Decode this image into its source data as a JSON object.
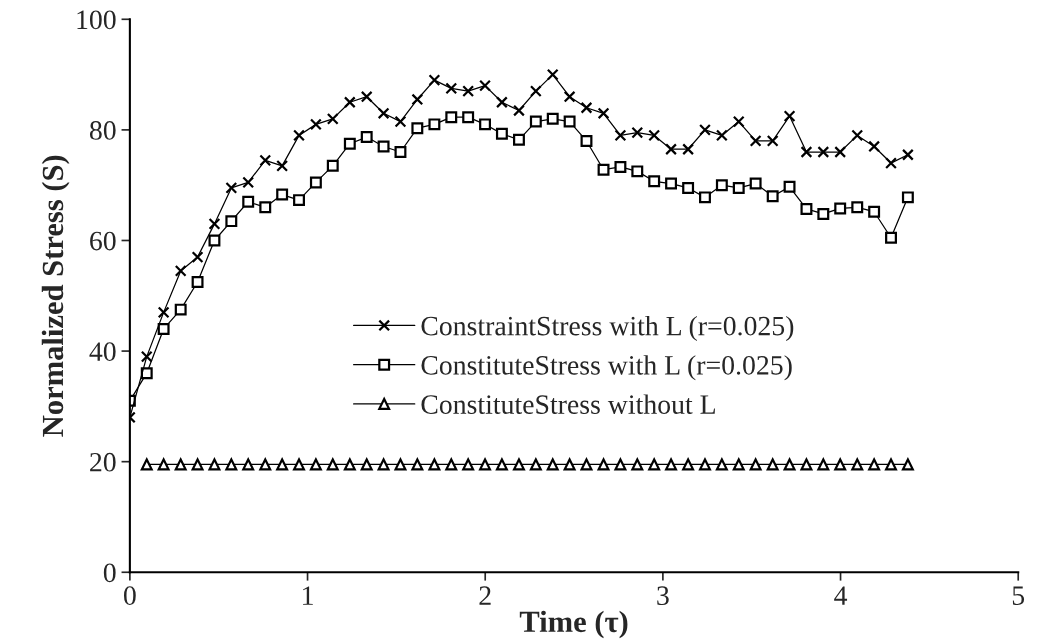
{
  "chart_data": {
    "type": "line",
    "xlabel": "Time (τ)",
    "ylabel": "Normalized Stress (S)",
    "x": [
      0,
      0.095,
      0.19,
      0.286,
      0.381,
      0.476,
      0.571,
      0.666,
      0.762,
      0.857,
      0.952,
      1.047,
      1.142,
      1.238,
      1.333,
      1.428,
      1.523,
      1.618,
      1.714,
      1.809,
      1.904,
      1.999,
      2.094,
      2.19,
      2.285,
      2.38,
      2.475,
      2.57,
      2.666,
      2.761,
      2.856,
      2.951,
      3.046,
      3.142,
      3.237,
      3.332,
      3.427,
      3.522,
      3.618,
      3.713,
      3.808,
      3.903,
      3.998,
      4.094,
      4.189,
      4.284,
      4.379
    ],
    "series": [
      {
        "name": "ConstraintStress with L (r=0.025)",
        "color": "#000000",
        "marker": "cross",
        "values": [
          28,
          39,
          47,
          54.5,
          57,
          63,
          69.5,
          70.5,
          74.5,
          73.5,
          79,
          81,
          82,
          85,
          86,
          83,
          81.5,
          85.5,
          89,
          87.5,
          87,
          88,
          85,
          83.5,
          87,
          90,
          86,
          84,
          83,
          79,
          79.5,
          79,
          76.5,
          76.5,
          80,
          79,
          81.5,
          78,
          78,
          82.5,
          76,
          76,
          76,
          79,
          77,
          74,
          75.5
        ]
      },
      {
        "name": "ConstituteStress with L (r=0.025)",
        "color": "#000000",
        "marker": "square",
        "values": [
          31,
          36,
          44,
          47.5,
          52.5,
          60,
          63.5,
          67,
          66,
          68.3,
          67.3,
          70.5,
          73.5,
          77.5,
          78.7,
          77,
          76,
          80.3,
          81,
          82.3,
          82.3,
          81,
          79.3,
          78.2,
          81.5,
          82,
          81.5,
          78,
          72.8,
          73.3,
          72.5,
          70.7,
          70.3,
          69.5,
          67.8,
          70,
          69.5,
          70.3,
          68,
          69.7,
          65.7,
          64.8,
          65.8,
          66,
          65.2,
          60.5,
          67.8
        ]
      },
      {
        "name": "ConstituteStress without L",
        "color": "#000000",
        "marker": "triangle",
        "values": [
          null,
          19.5,
          19.5,
          19.5,
          19.5,
          19.5,
          19.5,
          19.5,
          19.5,
          19.5,
          19.5,
          19.5,
          19.5,
          19.5,
          19.5,
          19.5,
          19.5,
          19.5,
          19.5,
          19.5,
          19.5,
          19.5,
          19.5,
          19.5,
          19.5,
          19.5,
          19.5,
          19.5,
          19.5,
          19.5,
          19.5,
          19.5,
          19.5,
          19.5,
          19.5,
          19.5,
          19.5,
          19.5,
          19.5,
          19.5,
          19.5,
          19.5,
          19.5,
          19.5,
          19.5,
          19.5,
          19.5
        ]
      }
    ],
    "xlim": [
      0,
      5
    ],
    "xticks": [
      0,
      1,
      2,
      3,
      4,
      5
    ],
    "ylim": [
      0,
      100
    ],
    "yticks": [
      0,
      20,
      40,
      60,
      80,
      100
    ],
    "grid": false,
    "legend": "center",
    "line_style": "solid"
  }
}
